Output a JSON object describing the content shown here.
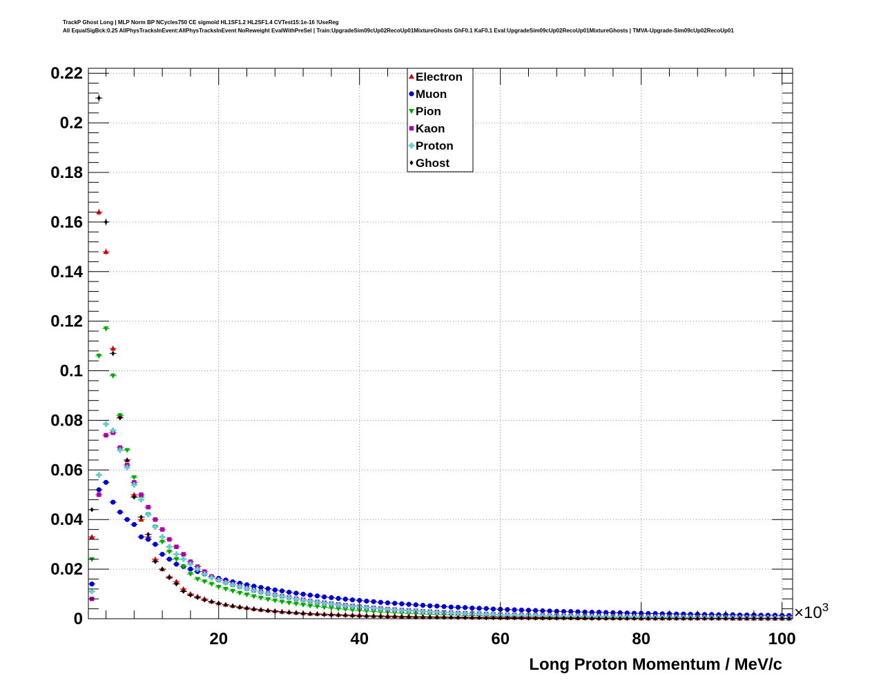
{
  "header": {
    "line1": "TrackP Ghost Long | MLP Norm BP NCycles750 CE sigmoid HL1SF1.2 HL2SF1.4 CVTest15:1e-16 !UseReg",
    "line2": "All EqualSigBck:0.25 AllPhysTracksInEvent:AllPhysTracksInEvent NoReweight EvalWithPreSel | Train:UpgradeSim09cUp02RecoUp01MixtureGhosts GhF0.1 KaF0.1 Eval:UpgradeSim09cUp02RecoUp01MixtureGhosts | TMVA-Upgrade-Sim09cUp02RecoUp01"
  },
  "chart_data": {
    "type": "scatter",
    "title": "",
    "xlabel": "Long Proton Momentum / MeV/c",
    "ylabel": "",
    "x_exponent_label": "×10",
    "x_exponent_power": "3",
    "xlim": [
      1.5,
      101.5
    ],
    "ylim": [
      0,
      0.222
    ],
    "x_ticks": [
      20,
      40,
      60,
      80,
      100
    ],
    "x_tick_labels": [
      "20",
      "40",
      "60",
      "80",
      "100"
    ],
    "y_ticks": [
      0,
      0.02,
      0.04,
      0.06,
      0.08,
      0.1,
      0.12,
      0.14,
      0.16,
      0.18,
      0.2,
      0.22
    ],
    "y_tick_labels": [
      "0",
      "0.02",
      "0.04",
      "0.06",
      "0.08",
      "0.1",
      "0.12",
      "0.14",
      "0.16",
      "0.18",
      "0.2",
      "0.22"
    ],
    "grid": true,
    "legend_position": "top-center",
    "x": [
      2,
      3,
      4,
      5,
      6,
      7,
      8,
      9,
      10,
      11,
      12,
      13,
      14,
      15,
      16,
      17,
      18,
      19,
      20,
      21,
      22,
      23,
      24,
      25,
      26,
      27,
      28,
      29,
      30,
      31,
      32,
      33,
      34,
      35,
      36,
      37,
      38,
      39,
      40,
      41,
      42,
      43,
      44,
      45,
      46,
      47,
      48,
      49,
      50,
      51,
      52,
      53,
      54,
      55,
      56,
      57,
      58,
      59,
      60,
      61,
      62,
      63,
      64,
      65,
      66,
      67,
      68,
      69,
      70,
      71,
      72,
      73,
      74,
      75,
      76,
      77,
      78,
      79,
      80,
      81,
      82,
      83,
      84,
      85,
      86,
      87,
      88,
      89,
      90,
      91,
      92,
      93,
      94,
      95,
      96,
      97,
      98,
      99,
      100,
      101
    ],
    "series": [
      {
        "name": "Electron",
        "color": "#cc0000",
        "marker": "triangle-up",
        "values": [
          0.033,
          0.164,
          0.148,
          0.109,
          0.082,
          0.064,
          0.05,
          0.04,
          0.033,
          0.024,
          0.02,
          0.017,
          0.015,
          0.012,
          0.01,
          0.009,
          0.008,
          0.007,
          0.0063,
          0.0057,
          0.0052,
          0.0048,
          0.0044,
          0.004,
          0.0037,
          0.0034,
          0.0032,
          0.0029,
          0.0027,
          0.0025,
          0.0023,
          0.0021,
          0.002,
          0.0019,
          0.0018,
          0.0017,
          0.0016,
          0.0015,
          0.0014,
          0.0013,
          0.0012,
          0.0012,
          0.0011,
          0.0011,
          0.001,
          0.001,
          0.0009,
          0.0009,
          0.0008,
          0.0008,
          0.0008,
          0.0007,
          0.0007,
          0.0007,
          0.0006,
          0.0006,
          0.0006,
          0.0006,
          0.0005,
          0.0005,
          0.0005,
          0.0005,
          0.0005,
          0.0004,
          0.0004,
          0.0004,
          0.0004,
          0.0004,
          0.0004,
          0.0003,
          0.0003,
          0.0003,
          0.0003,
          0.0003,
          0.0003,
          0.0003,
          0.0003,
          0.0003,
          0.0002,
          0.0002,
          0.0002,
          0.0002,
          0.0002,
          0.0002,
          0.0002,
          0.0002,
          0.0002,
          0.0002,
          0.0002,
          0.0002,
          0.0002,
          0.0001,
          0.0001,
          0.0001,
          0.0001,
          0.0001,
          0.0001,
          0.0001,
          0.0001,
          0.0001
        ]
      },
      {
        "name": "Muon",
        "color": "#0000cc",
        "marker": "circle",
        "values": [
          0.014,
          0.052,
          0.055,
          0.047,
          0.043,
          0.04,
          0.038,
          0.033,
          0.032,
          0.03,
          0.026,
          0.024,
          0.022,
          0.021,
          0.02,
          0.019,
          0.018,
          0.017,
          0.0163,
          0.0156,
          0.0149,
          0.0143,
          0.0137,
          0.0131,
          0.0126,
          0.0121,
          0.0116,
          0.0112,
          0.0107,
          0.0103,
          0.0099,
          0.0095,
          0.0092,
          0.0088,
          0.0085,
          0.0082,
          0.0079,
          0.0076,
          0.0074,
          0.0071,
          0.0069,
          0.0066,
          0.0064,
          0.0062,
          0.006,
          0.0058,
          0.0056,
          0.0054,
          0.0052,
          0.0051,
          0.0049,
          0.0047,
          0.0046,
          0.0045,
          0.0043,
          0.0042,
          0.0041,
          0.0039,
          0.0038,
          0.0037,
          0.0036,
          0.0035,
          0.0034,
          0.0033,
          0.0032,
          0.0031,
          0.003,
          0.0029,
          0.0029,
          0.0028,
          0.0027,
          0.0026,
          0.0026,
          0.0025,
          0.0024,
          0.0024,
          0.0023,
          0.0022,
          0.0022,
          0.0021,
          0.0021,
          0.002,
          0.002,
          0.0019,
          0.0019,
          0.0018,
          0.0018,
          0.0017,
          0.0017,
          0.0016,
          0.0016,
          0.0016,
          0.0015,
          0.0015,
          0.0015,
          0.0014,
          0.0014,
          0.0014,
          0.0013,
          0.0013
        ]
      },
      {
        "name": "Pion",
        "color": "#00aa00",
        "marker": "triangle-down",
        "values": [
          0.024,
          0.106,
          0.117,
          0.098,
          0.082,
          0.068,
          0.057,
          0.049,
          0.042,
          0.037,
          0.031,
          0.027,
          0.024,
          0.021,
          0.018,
          0.016,
          0.015,
          0.014,
          0.0128,
          0.012,
          0.0112,
          0.0104,
          0.0097,
          0.009,
          0.0084,
          0.0078,
          0.0073,
          0.0068,
          0.0064,
          0.006,
          0.0056,
          0.0052,
          0.0049,
          0.0046,
          0.0043,
          0.004,
          0.0038,
          0.0035,
          0.0033,
          0.0031,
          0.0029,
          0.0027,
          0.0026,
          0.0024,
          0.0023,
          0.0021,
          0.002,
          0.0019,
          0.0018,
          0.0017,
          0.0016,
          0.0015,
          0.0014,
          0.0013,
          0.0012,
          0.0012,
          0.0011,
          0.001,
          0.001,
          0.0009,
          0.0009,
          0.0008,
          0.0008,
          0.0007,
          0.0007,
          0.0007,
          0.0006,
          0.0006,
          0.0006,
          0.0005,
          0.0005,
          0.0005,
          0.0005,
          0.0004,
          0.0004,
          0.0004,
          0.0004,
          0.0004,
          0.0003,
          0.0003,
          0.0003,
          0.0003,
          0.0003,
          0.0003,
          0.0003,
          0.0002,
          0.0002,
          0.0002,
          0.0002,
          0.0002,
          0.0002,
          0.0002,
          0.0002,
          0.0002,
          0.0002,
          0.0001,
          0.0001,
          0.0001,
          0.0001,
          0.0001
        ]
      },
      {
        "name": "Kaon",
        "color": "#aa00aa",
        "marker": "square",
        "values": [
          0.008,
          0.05,
          0.074,
          0.075,
          0.069,
          0.062,
          0.055,
          0.05,
          0.045,
          0.04,
          0.036,
          0.032,
          0.029,
          0.026,
          0.023,
          0.021,
          0.019,
          0.017,
          0.0157,
          0.0147,
          0.0138,
          0.013,
          0.0122,
          0.0115,
          0.0108,
          0.0102,
          0.0096,
          0.0091,
          0.0086,
          0.0081,
          0.0077,
          0.0072,
          0.0068,
          0.0065,
          0.0061,
          0.0058,
          0.0055,
          0.0052,
          0.0049,
          0.0046,
          0.0044,
          0.0042,
          0.0039,
          0.0037,
          0.0035,
          0.0034,
          0.0032,
          0.003,
          0.0029,
          0.0027,
          0.0026,
          0.0025,
          0.0023,
          0.0022,
          0.0021,
          0.002,
          0.0019,
          0.0018,
          0.0017,
          0.0016,
          0.0016,
          0.0015,
          0.0014,
          0.0014,
          0.0013,
          0.0012,
          0.0012,
          0.0011,
          0.0011,
          0.001,
          0.001,
          0.0009,
          0.0009,
          0.0009,
          0.0008,
          0.0008,
          0.0008,
          0.0007,
          0.0007,
          0.0007,
          0.0006,
          0.0006,
          0.0006,
          0.0006,
          0.0005,
          0.0005,
          0.0005,
          0.0005,
          0.0005,
          0.0004,
          0.0004,
          0.0004,
          0.0004,
          0.0004,
          0.0004,
          0.0003,
          0.0003,
          0.0003,
          0.0003,
          0.0003
        ]
      },
      {
        "name": "Proton",
        "color": "#66cccc",
        "marker": "cross",
        "values": [
          0.011,
          0.058,
          0.0785,
          0.076,
          0.068,
          0.061,
          0.054,
          0.048,
          0.042,
          0.037,
          0.033,
          0.029,
          0.026,
          0.024,
          0.022,
          0.02,
          0.018,
          0.0165,
          0.0155,
          0.0145,
          0.0137,
          0.0129,
          0.0121,
          0.0114,
          0.0107,
          0.0101,
          0.0095,
          0.009,
          0.0085,
          0.008,
          0.0075,
          0.0071,
          0.0067,
          0.0063,
          0.006,
          0.0056,
          0.0053,
          0.005,
          0.0048,
          0.0045,
          0.0043,
          0.004,
          0.0038,
          0.0036,
          0.0034,
          0.0032,
          0.0031,
          0.0029,
          0.0028,
          0.0026,
          0.0025,
          0.0024,
          0.0022,
          0.0021,
          0.002,
          0.0019,
          0.0018,
          0.0017,
          0.0016,
          0.0016,
          0.0015,
          0.0014,
          0.0013,
          0.0013,
          0.0012,
          0.0012,
          0.0011,
          0.0011,
          0.001,
          0.001,
          0.0009,
          0.0009,
          0.0008,
          0.0008,
          0.0008,
          0.0007,
          0.0007,
          0.0007,
          0.0006,
          0.0006,
          0.0006,
          0.0006,
          0.0005,
          0.0005,
          0.0005,
          0.0005,
          0.0004,
          0.0004,
          0.0004,
          0.0004,
          0.0004,
          0.0004,
          0.0003,
          0.0003,
          0.0003,
          0.0003,
          0.0003,
          0.0003,
          0.0003,
          0.0002
        ]
      },
      {
        "name": "Ghost",
        "color": "#000000",
        "marker": "diamond",
        "values": [
          0.044,
          0.21,
          0.16,
          0.107,
          0.081,
          0.064,
          0.049,
          0.041,
          0.034,
          0.023,
          0.02,
          0.0165,
          0.014,
          0.011,
          0.0095,
          0.0085,
          0.0075,
          0.0068,
          0.0062,
          0.0056,
          0.0051,
          0.0046,
          0.0042,
          0.0038,
          0.0035,
          0.0032,
          0.0029,
          0.0027,
          0.0025,
          0.0023,
          0.0021,
          0.0019,
          0.0018,
          0.0016,
          0.0015,
          0.0014,
          0.0013,
          0.0012,
          0.0011,
          0.001,
          0.001,
          0.0009,
          0.0008,
          0.0008,
          0.0007,
          0.0007,
          0.0006,
          0.0006,
          0.0006,
          0.0005,
          0.0005,
          0.0005,
          0.0004,
          0.0004,
          0.0004,
          0.0004,
          0.0003,
          0.0003,
          0.0003,
          0.0003,
          0.0003,
          0.0003,
          0.0002,
          0.0002,
          0.0002,
          0.0002,
          0.0002,
          0.0002,
          0.0002,
          0.0002,
          0.0002,
          0.0001,
          0.0001,
          0.0001,
          0.0001,
          0.0001,
          0.0001,
          0.0001,
          0.0001,
          0.0001,
          0.0001,
          0.0001,
          0.0001,
          0.0001,
          0.0001,
          0.0001,
          0.0001,
          0.0001,
          0.0001,
          0.0001,
          0.0001,
          0.0001,
          0.0001,
          0.0001,
          0.0001,
          0.0001,
          0.0001,
          0.0001,
          0.0001,
          0.0001
        ]
      }
    ]
  }
}
